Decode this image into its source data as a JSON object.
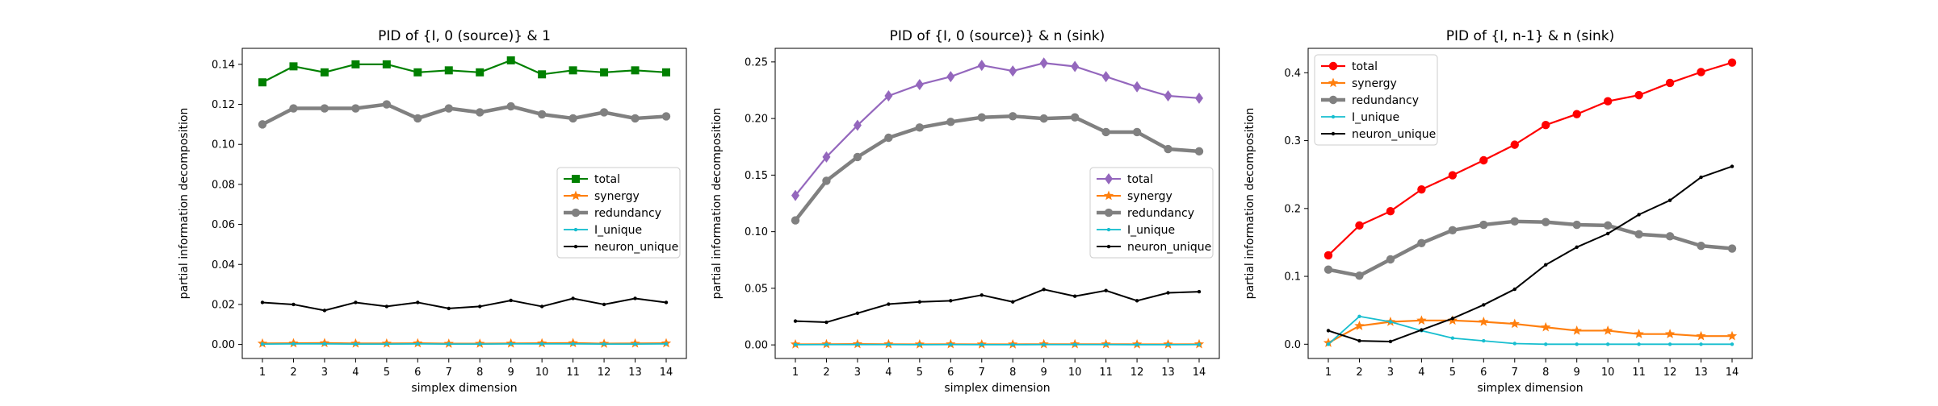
{
  "chart_data": [
    {
      "type": "line",
      "title": "PID of {I, 0 (source)} & 1",
      "xlabel": "simplex dimension",
      "ylabel": "partial information decomposition",
      "x": [
        1,
        2,
        3,
        4,
        5,
        6,
        7,
        8,
        9,
        10,
        11,
        12,
        13,
        14
      ],
      "ylim": [
        -0.007,
        0.148
      ],
      "yticks": [
        0.0,
        0.02,
        0.04,
        0.06,
        0.08,
        0.1,
        0.12,
        0.14
      ],
      "ytick_labels": [
        "0.00",
        "0.02",
        "0.04",
        "0.06",
        "0.08",
        "0.10",
        "0.12",
        "0.14"
      ],
      "legend_position": "center-right",
      "series": [
        {
          "name": "total",
          "color": "#008000",
          "marker": "square",
          "values": [
            0.131,
            0.139,
            0.136,
            0.14,
            0.14,
            0.136,
            0.137,
            0.136,
            0.142,
            0.135,
            0.137,
            0.136,
            0.137,
            0.136
          ]
        },
        {
          "name": "synergy",
          "color": "#ff7f0e",
          "marker": "star",
          "values": [
            0.0005,
            0.0006,
            0.0007,
            0.0005,
            0.0005,
            0.0006,
            0.0004,
            0.0004,
            0.0005,
            0.0006,
            0.0007,
            0.0004,
            0.0005,
            0.0006
          ]
        },
        {
          "name": "redundancy",
          "color": "#808080",
          "marker": "circle",
          "values": [
            0.11,
            0.118,
            0.118,
            0.118,
            0.12,
            0.113,
            0.118,
            0.116,
            0.119,
            0.115,
            0.113,
            0.116,
            0.113,
            0.114
          ]
        },
        {
          "name": "I_unique",
          "color": "#17becf",
          "marker": "dot",
          "values": [
            0.0002,
            0.0003,
            0.0003,
            0.0002,
            0.0002,
            0.0003,
            0.0002,
            0.0002,
            0.0003,
            0.0003,
            0.0003,
            0.0002,
            0.0002,
            0.0003
          ]
        },
        {
          "name": "neuron_unique",
          "color": "#000000",
          "marker": "dot",
          "values": [
            0.021,
            0.02,
            0.017,
            0.021,
            0.019,
            0.021,
            0.018,
            0.019,
            0.022,
            0.019,
            0.023,
            0.02,
            0.023,
            0.021
          ]
        }
      ]
    },
    {
      "type": "line",
      "title": "PID of {I, 0 (source)} & n (sink)",
      "xlabel": "simplex dimension",
      "ylabel": "partial information decomposition",
      "x": [
        1,
        2,
        3,
        4,
        5,
        6,
        7,
        8,
        9,
        10,
        11,
        12,
        13,
        14
      ],
      "ylim": [
        -0.012,
        0.262
      ],
      "yticks": [
        0.0,
        0.05,
        0.1,
        0.15,
        0.2,
        0.25
      ],
      "ytick_labels": [
        "0.00",
        "0.05",
        "0.10",
        "0.15",
        "0.20",
        "0.25"
      ],
      "legend_position": "center-right",
      "series": [
        {
          "name": "total",
          "color": "#9467bd",
          "marker": "diamond",
          "values": [
            0.132,
            0.166,
            0.194,
            0.22,
            0.23,
            0.237,
            0.247,
            0.242,
            0.249,
            0.246,
            0.237,
            0.228,
            0.22,
            0.218
          ]
        },
        {
          "name": "synergy",
          "color": "#ff7f0e",
          "marker": "star",
          "values": [
            0.0005,
            0.0006,
            0.0007,
            0.0006,
            0.0005,
            0.0006,
            0.0005,
            0.0005,
            0.0006,
            0.0006,
            0.0006,
            0.0005,
            0.0005,
            0.0006
          ]
        },
        {
          "name": "redundancy",
          "color": "#808080",
          "marker": "circle",
          "values": [
            0.11,
            0.145,
            0.166,
            0.183,
            0.192,
            0.197,
            0.201,
            0.202,
            0.2,
            0.201,
            0.188,
            0.188,
            0.173,
            0.171
          ]
        },
        {
          "name": "I_unique",
          "color": "#17becf",
          "marker": "dot",
          "values": [
            0.0002,
            0.0003,
            0.0003,
            0.0003,
            0.0002,
            0.0003,
            0.0002,
            0.0002,
            0.0003,
            0.0003,
            0.0003,
            0.0002,
            0.0002,
            0.0003
          ]
        },
        {
          "name": "neuron_unique",
          "color": "#000000",
          "marker": "dot",
          "values": [
            0.021,
            0.02,
            0.028,
            0.036,
            0.038,
            0.039,
            0.044,
            0.038,
            0.049,
            0.043,
            0.048,
            0.039,
            0.046,
            0.047
          ]
        }
      ]
    },
    {
      "type": "line",
      "title": "PID of {I, n-1} & n (sink)",
      "xlabel": "simplex dimension",
      "ylabel": "partial information decomposition",
      "x": [
        1,
        2,
        3,
        4,
        5,
        6,
        7,
        8,
        9,
        10,
        11,
        12,
        13,
        14
      ],
      "ylim": [
        -0.021,
        0.436
      ],
      "yticks": [
        0.0,
        0.1,
        0.2,
        0.3,
        0.4
      ],
      "ytick_labels": [
        "0.0",
        "0.1",
        "0.2",
        "0.3",
        "0.4"
      ],
      "legend_position": "top-left",
      "series": [
        {
          "name": "total",
          "color": "#ff0000",
          "marker": "circle",
          "values": [
            0.131,
            0.175,
            0.196,
            0.228,
            0.249,
            0.271,
            0.294,
            0.323,
            0.339,
            0.358,
            0.367,
            0.385,
            0.401,
            0.415
          ]
        },
        {
          "name": "synergy",
          "color": "#ff7f0e",
          "marker": "star",
          "values": [
            0.002,
            0.027,
            0.033,
            0.035,
            0.035,
            0.033,
            0.03,
            0.025,
            0.02,
            0.02,
            0.015,
            0.015,
            0.012,
            0.012
          ]
        },
        {
          "name": "redundancy",
          "color": "#808080",
          "marker": "circle",
          "values": [
            0.11,
            0.101,
            0.125,
            0.149,
            0.168,
            0.176,
            0.181,
            0.18,
            0.176,
            0.175,
            0.162,
            0.159,
            0.145,
            0.141
          ]
        },
        {
          "name": "I_unique",
          "color": "#17becf",
          "marker": "dot",
          "values": [
            0.0,
            0.041,
            0.033,
            0.02,
            0.009,
            0.005,
            0.001,
            0.0,
            0.0,
            0.0,
            0.0,
            0.0,
            0.0,
            0.0
          ]
        },
        {
          "name": "neuron_unique",
          "color": "#000000",
          "marker": "dot",
          "values": [
            0.02,
            0.005,
            0.004,
            0.021,
            0.038,
            0.058,
            0.081,
            0.117,
            0.143,
            0.163,
            0.191,
            0.212,
            0.246,
            0.262
          ]
        }
      ]
    }
  ]
}
